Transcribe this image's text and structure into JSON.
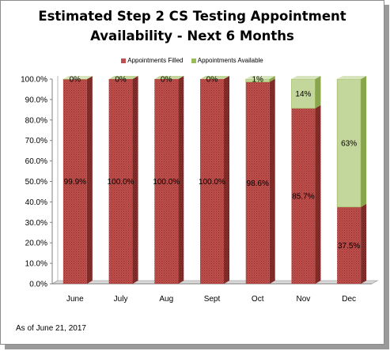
{
  "chart_data": {
    "type": "bar",
    "stacked": true,
    "title_line1": "Estimated Step 2 CS  Testing Appointment",
    "title_line2": "Availability - Next 6 Months",
    "categories": [
      "June",
      "July",
      "Aug",
      "Sept",
      "Oct",
      "Nov",
      "Dec"
    ],
    "series": [
      {
        "name": "Appointments Filled",
        "values": [
          99.9,
          100.0,
          100.0,
          100.0,
          98.6,
          85.7,
          37.5
        ],
        "labels": [
          "99.9%",
          "100.0%",
          "100.0%",
          "100.0%",
          "98.6%",
          "85.7%",
          "37.5%"
        ],
        "color": "#c0504d"
      },
      {
        "name": "Appointments Available",
        "values": [
          0.1,
          0,
          0,
          0,
          1.4,
          14.3,
          62.5
        ],
        "labels": [
          "0%",
          "0%",
          "0%",
          "0%",
          "1%",
          "14%",
          "63%"
        ],
        "color": "#c3d69b"
      }
    ],
    "y_ticks": [
      "0.0%",
      "10.0%",
      "20.0%",
      "30.0%",
      "40.0%",
      "50.0%",
      "60.0%",
      "70.0%",
      "80.0%",
      "90.0%",
      "100.0%"
    ],
    "ylim": [
      0,
      100
    ],
    "grid": false,
    "legend_position": "top"
  },
  "footnote": "As of June 21, 2017"
}
